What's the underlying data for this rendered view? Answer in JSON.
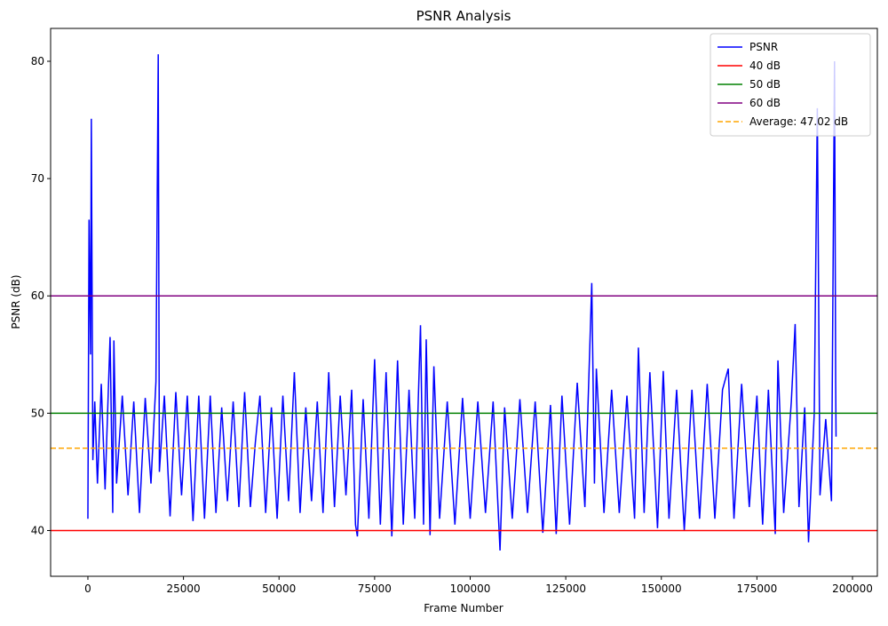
{
  "chart_data": {
    "type": "line",
    "title": "PSNR Analysis",
    "x_label": "Frame Number",
    "y_label": "PSNR (dB)",
    "xlim": [
      -9750,
      206500
    ],
    "ylim": [
      36.1,
      82.8
    ],
    "xticks": [
      0,
      25000,
      50000,
      75000,
      100000,
      125000,
      150000,
      175000,
      200000
    ],
    "yticks": [
      40,
      50,
      60,
      70,
      80
    ],
    "legend": "upper right",
    "series": [
      {
        "name": "PSNR",
        "color": "#0000ff",
        "x": [
          0,
          300,
          700,
          900,
          1300,
          1800,
          2500,
          3500,
          4500,
          5800,
          6500,
          6800,
          7500,
          9000,
          10500,
          12000,
          13500,
          15000,
          16500,
          17800,
          18400,
          18700,
          20000,
          21500,
          23000,
          24500,
          26000,
          27500,
          29000,
          30500,
          32000,
          33500,
          35000,
          36500,
          38000,
          39500,
          41000,
          42500,
          43800,
          45000,
          46500,
          48000,
          49500,
          51000,
          52500,
          54000,
          55500,
          57000,
          58500,
          60000,
          61500,
          63000,
          64500,
          66000,
          67500,
          69000,
          70000,
          70500,
          72000,
          73500,
          75000,
          76500,
          78000,
          79500,
          81000,
          82500,
          84000,
          85500,
          87000,
          87800,
          88500,
          89500,
          90500,
          92000,
          94000,
          96000,
          98000,
          100000,
          102000,
          104000,
          106000,
          107800,
          109000,
          111000,
          113000,
          115000,
          117000,
          119000,
          121000,
          122500,
          124000,
          126000,
          128000,
          130000,
          131800,
          132500,
          133000,
          135000,
          137000,
          139000,
          141000,
          143000,
          144000,
          145500,
          147000,
          149000,
          150500,
          152000,
          154000,
          156000,
          158000,
          160000,
          162000,
          164000,
          166000,
          167500,
          169000,
          171000,
          173000,
          175000,
          176500,
          178000,
          179800,
          180500,
          182000,
          184000,
          185000,
          186000,
          187500,
          188500,
          190000,
          190800,
          191500,
          193000,
          194500,
          195300,
          195600,
          195700
        ],
        "values": [
          41.0,
          66.5,
          55,
          75.1,
          46,
          51,
          44,
          52.5,
          43.5,
          56.5,
          41.5,
          56.2,
          44,
          51.5,
          43,
          51,
          41.5,
          51.3,
          44,
          52.7,
          80.6,
          45,
          51.5,
          41.2,
          51.8,
          43,
          51.5,
          40.8,
          51.5,
          41,
          51.5,
          41.5,
          50.5,
          42.5,
          51,
          42,
          51.8,
          42,
          47.5,
          51.5,
          41.5,
          50.5,
          41,
          51.5,
          42.5,
          53.5,
          41.5,
          50.5,
          42.5,
          51,
          41.5,
          53.5,
          42,
          51.5,
          43,
          52,
          40.5,
          39.5,
          51.2,
          41,
          54.6,
          40.5,
          53.5,
          39.5,
          54.5,
          40.5,
          52,
          41,
          57.5,
          40.5,
          56.3,
          39.6,
          54,
          41,
          51,
          40.5,
          51.3,
          41,
          51,
          41.5,
          51,
          38.3,
          50.5,
          41,
          51.2,
          41.5,
          51,
          39.8,
          50.7,
          39.7,
          51.5,
          40.5,
          52.6,
          42,
          61.1,
          44,
          53.8,
          41.5,
          52,
          41.5,
          51.5,
          41,
          55.6,
          41.5,
          53.5,
          40.2,
          53.6,
          41,
          52,
          40,
          52,
          41,
          52.5,
          41,
          52,
          53.8,
          41,
          52.5,
          42,
          51.5,
          40.5,
          52,
          39.7,
          54.5,
          41.5,
          51,
          57.6,
          42,
          50.5,
          39,
          50,
          76,
          43,
          49.5,
          42.5,
          80,
          52.6,
          48
        ]
      }
    ],
    "reference_lines": [
      {
        "name": "40 dB",
        "color": "#ff0000",
        "value": 40,
        "style": "solid"
      },
      {
        "name": "50 dB",
        "color": "#008000",
        "value": 50,
        "style": "solid"
      },
      {
        "name": "60 dB",
        "color": "#800080",
        "value": 60,
        "style": "solid"
      },
      {
        "name": "Average: 47.02 dB",
        "color": "#ffa500",
        "value": 47.02,
        "style": "dashed"
      }
    ]
  }
}
